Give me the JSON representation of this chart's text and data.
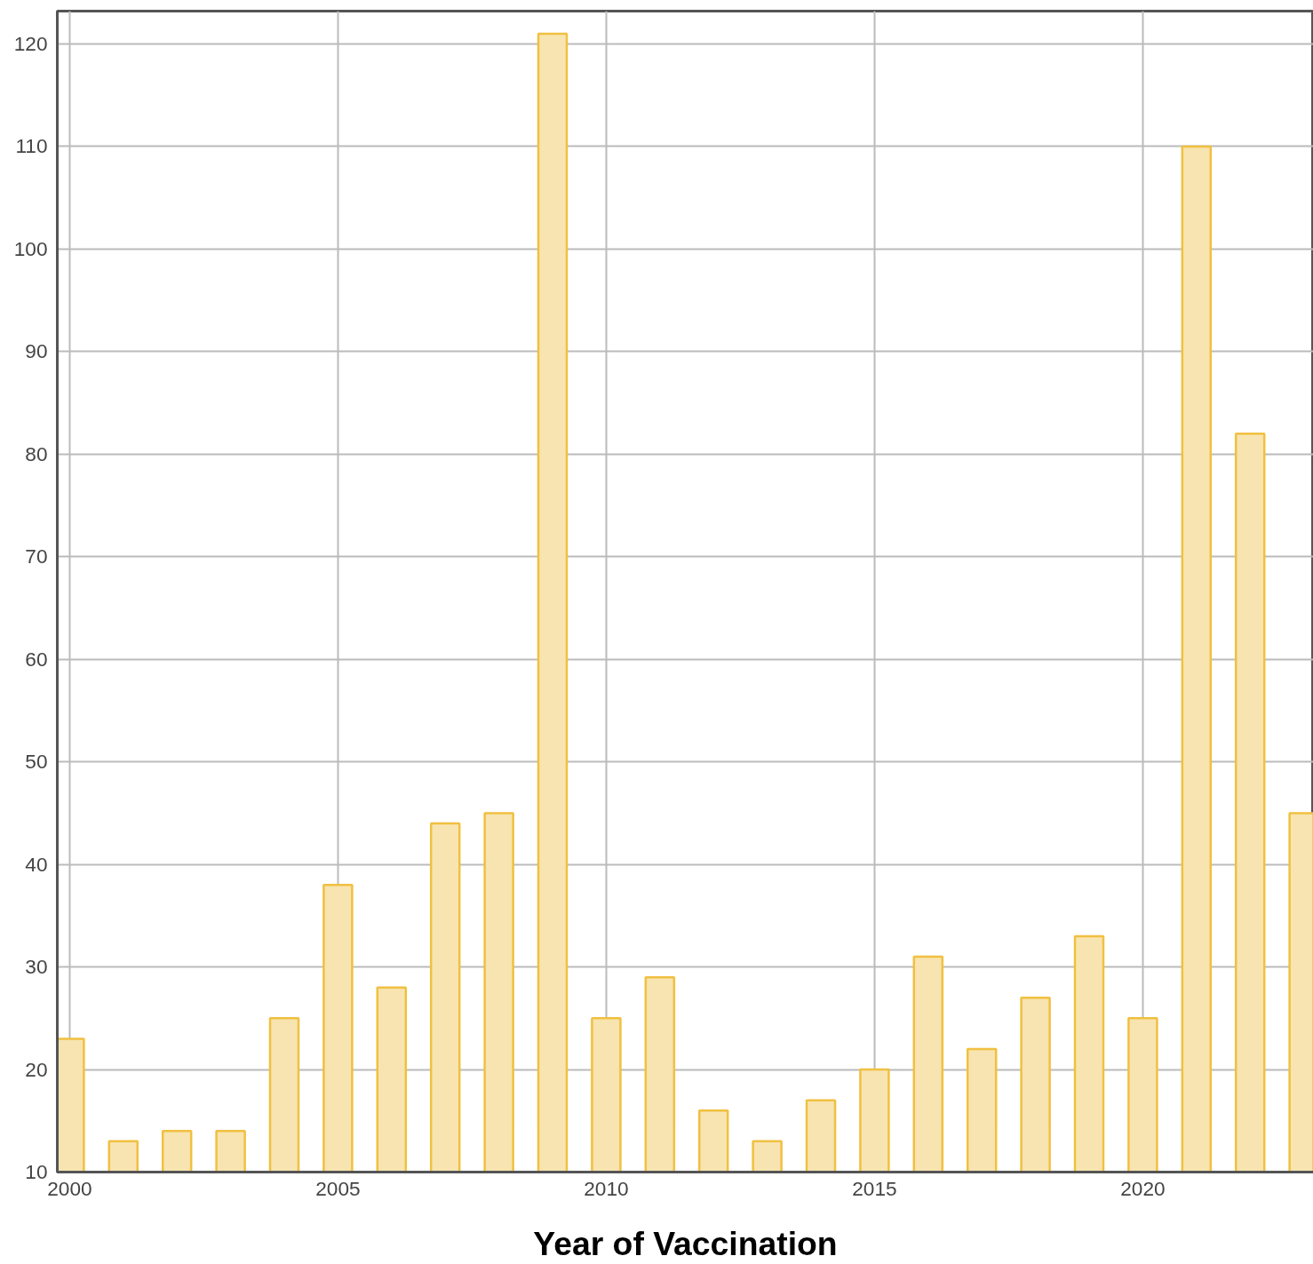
{
  "chart_data": {
    "type": "bar",
    "xlabel": "Year of Vaccination",
    "x": [
      2000,
      2001,
      2002,
      2003,
      2004,
      2005,
      2006,
      2007,
      2008,
      2009,
      2010,
      2011,
      2012,
      2013,
      2014,
      2015,
      2016,
      2017,
      2018,
      2019,
      2020,
      2021,
      2022,
      2023
    ],
    "values": [
      23,
      13,
      14,
      14,
      25,
      38,
      28,
      44,
      45,
      121,
      25,
      29,
      16,
      13,
      17,
      20,
      31,
      22,
      27,
      33,
      25,
      110,
      82,
      45
    ],
    "color": "#f8e4b0",
    "xlim": [
      1999.77,
      2023.18
    ],
    "xticks": [
      2000,
      2005,
      2010,
      2015,
      2020
    ],
    "ylim": [
      10,
      123.2
    ],
    "yticks": [
      10,
      20,
      30,
      40,
      50,
      60,
      70,
      80,
      90,
      100,
      110,
      120
    ],
    "grid": true
  }
}
